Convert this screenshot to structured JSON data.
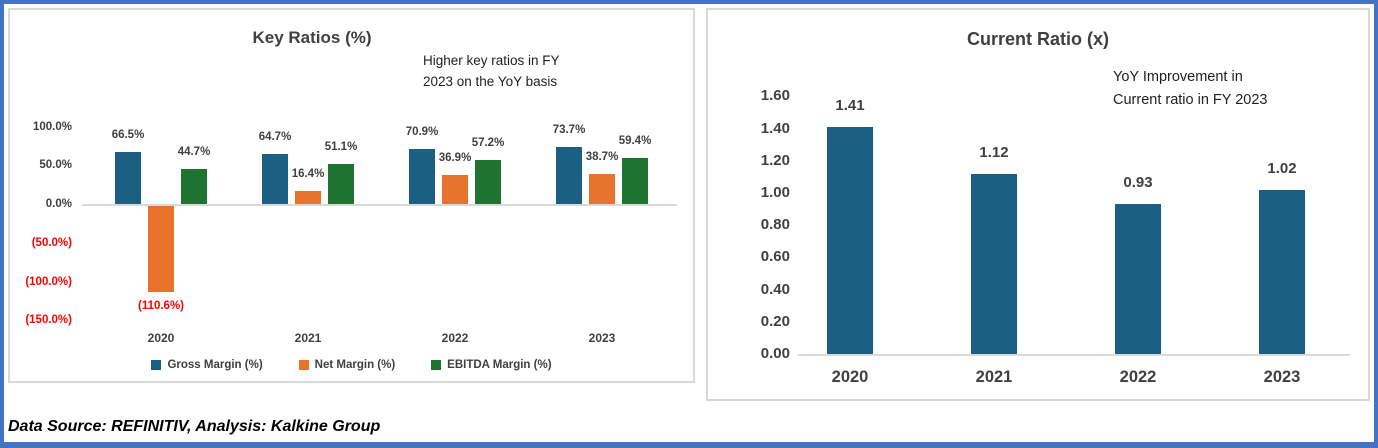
{
  "footer": "Data Source: REFINITIV, Analysis: Kalkine Group",
  "chart_data": [
    {
      "type": "bar",
      "title": "Key Ratios (%)",
      "annotation": "Higher key ratios in FY 2023 on the YoY basis",
      "categories": [
        "2020",
        "2021",
        "2022",
        "2023"
      ],
      "series": [
        {
          "name": "Gross Margin (%)",
          "color": "#1B5F82",
          "values": [
            66.5,
            64.7,
            70.9,
            73.7
          ],
          "labels": [
            "66.5%",
            "64.7%",
            "70.9%",
            "73.7%"
          ]
        },
        {
          "name": "Net Margin (%)",
          "color": "#E8732C",
          "values": [
            -110.6,
            16.4,
            36.9,
            38.7
          ],
          "labels": [
            "(110.6%)",
            "16.4%",
            "36.9%",
            "38.7%"
          ]
        },
        {
          "name": "EBITDA Margin (%)",
          "color": "#1E7330",
          "values": [
            44.7,
            51.1,
            57.2,
            59.4
          ],
          "labels": [
            "44.7%",
            "51.1%",
            "57.2%",
            "59.4%"
          ]
        }
      ],
      "y_ticks": [
        {
          "label": "100.0%",
          "value": 100,
          "color": "#404040"
        },
        {
          "label": "50.0%",
          "value": 50,
          "color": "#404040"
        },
        {
          "label": "0.0%",
          "value": 0,
          "color": "#404040"
        },
        {
          "label": "(50.0%)",
          "value": -50,
          "color": "#FF0000"
        },
        {
          "label": "(100.0%)",
          "value": -100,
          "color": "#FF0000"
        },
        {
          "label": "(150.0%)",
          "value": -150,
          "color": "#FF0000"
        }
      ],
      "ylim": [
        -150,
        100
      ],
      "negative_label_color": "#FF0000",
      "legend_position": "bottom",
      "grid": false
    },
    {
      "type": "bar",
      "title": "Current Ratio (x)",
      "annotation": "YoY Improvement in Current ratio in FY 2023",
      "categories": [
        "2020",
        "2021",
        "2022",
        "2023"
      ],
      "series": [
        {
          "name": "Current Ratio (x)",
          "color": "#1B5F82",
          "values": [
            1.41,
            1.12,
            0.93,
            1.02
          ],
          "labels": [
            "1.41",
            "1.12",
            "0.93",
            "1.02"
          ]
        }
      ],
      "y_ticks": [
        {
          "label": "1.60",
          "value": 1.6,
          "color": "#404040"
        },
        {
          "label": "1.40",
          "value": 1.4,
          "color": "#404040"
        },
        {
          "label": "1.20",
          "value": 1.2,
          "color": "#404040"
        },
        {
          "label": "1.00",
          "value": 1.0,
          "color": "#404040"
        },
        {
          "label": "0.80",
          "value": 0.8,
          "color": "#404040"
        },
        {
          "label": "0.60",
          "value": 0.6,
          "color": "#404040"
        },
        {
          "label": "0.40",
          "value": 0.4,
          "color": "#404040"
        },
        {
          "label": "0.20",
          "value": 0.2,
          "color": "#404040"
        },
        {
          "label": "0.00",
          "value": 0.0,
          "color": "#404040"
        }
      ],
      "ylim": [
        0,
        1.6
      ],
      "legend_position": "none",
      "grid": false
    }
  ]
}
